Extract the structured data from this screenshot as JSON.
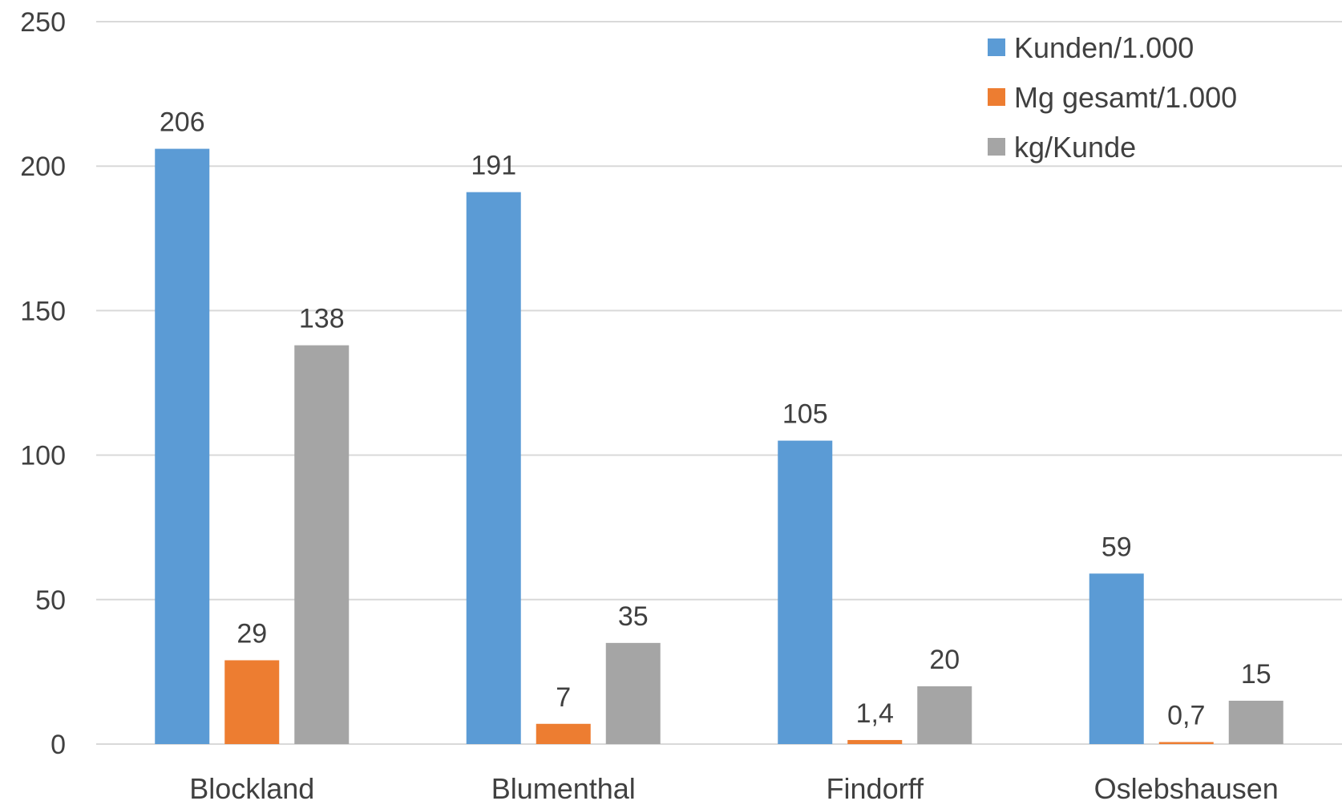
{
  "chart_data": {
    "type": "bar",
    "title": "",
    "xlabel": "",
    "ylabel": "",
    "ylim": [
      0,
      250
    ],
    "yticks": [
      0,
      50,
      100,
      150,
      200,
      250
    ],
    "grid": true,
    "legend_position": "top-right",
    "categories": [
      "Blockland",
      "Blumenthal",
      "Findorff",
      "Oslebshausen"
    ],
    "series": [
      {
        "name": "Kunden/1.000",
        "color": "#5b9bd5",
        "values": [
          206,
          191,
          105,
          59
        ],
        "labels": [
          "206",
          "191",
          "105",
          "59"
        ]
      },
      {
        "name": "Mg gesamt/1.000",
        "color": "#ed7d31",
        "values": [
          29,
          7,
          1.4,
          0.7
        ],
        "labels": [
          "29",
          "7",
          "1,4",
          "0,7"
        ]
      },
      {
        "name": "kg/Kunde",
        "color": "#a5a5a5",
        "values": [
          138,
          35,
          20,
          15
        ],
        "labels": [
          "138",
          "35",
          "20",
          "15"
        ]
      }
    ]
  }
}
